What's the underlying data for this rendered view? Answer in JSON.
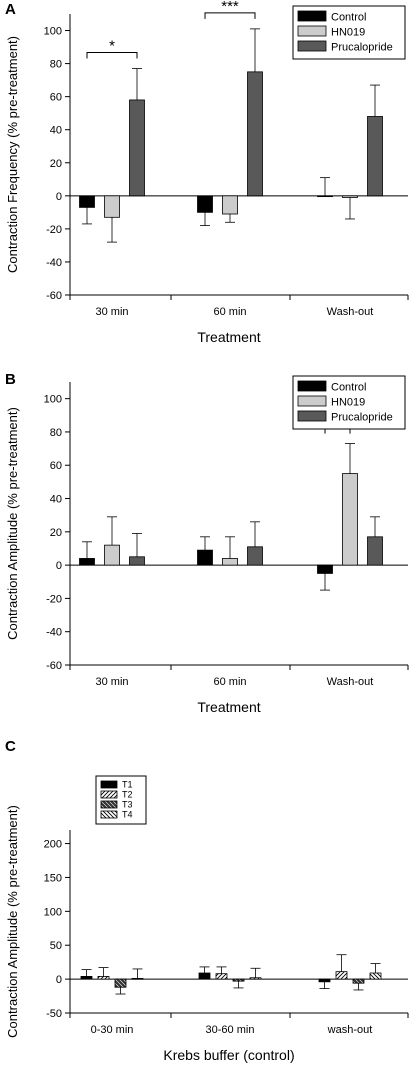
{
  "chart_data": [
    {
      "panel_label": "A",
      "type": "bar",
      "categories": [
        "30 min",
        "60 min",
        "Wash-out"
      ],
      "series": [
        {
          "name": "Control",
          "values": [
            -7,
            -10,
            0
          ],
          "errors": [
            10,
            8,
            11
          ]
        },
        {
          "name": "HN019",
          "values": [
            -13,
            -11,
            -1
          ],
          "errors": [
            15,
            5,
            13
          ]
        },
        {
          "name": "Prucalopride",
          "values": [
            58,
            75,
            48
          ],
          "errors": [
            19,
            26,
            19
          ]
        }
      ],
      "xlabel": "Treatment",
      "ylabel": "Contraction Frequency (% pre-treatment)",
      "ylim": [
        -60,
        110
      ],
      "yticks": [
        -60,
        -40,
        -20,
        0,
        20,
        40,
        60,
        80,
        100
      ],
      "legend": "top-right",
      "significance": [
        {
          "category": "30 min",
          "text": "*"
        },
        {
          "category": "60 min",
          "text": "***"
        }
      ]
    },
    {
      "panel_label": "B",
      "type": "bar",
      "categories": [
        "30 min",
        "60 min",
        "Wash-out"
      ],
      "series": [
        {
          "name": "Control",
          "values": [
            4,
            9,
            -5
          ],
          "errors": [
            10,
            8,
            10
          ]
        },
        {
          "name": "HN019",
          "values": [
            12,
            4,
            55
          ],
          "errors": [
            17,
            13,
            18
          ]
        },
        {
          "name": "Prucalopride",
          "values": [
            5,
            11,
            17
          ],
          "errors": [
            14,
            15,
            12
          ]
        }
      ],
      "xlabel": "Treatment",
      "ylabel": "Contraction Amplitude (% pre-treatment)",
      "ylim": [
        -60,
        110
      ],
      "yticks": [
        -60,
        -40,
        -20,
        0,
        20,
        40,
        60,
        80,
        100
      ],
      "legend": "top-right",
      "significance": [
        {
          "category": "Wash-out",
          "text": "***"
        }
      ]
    },
    {
      "panel_label": "C",
      "type": "bar",
      "categories": [
        "0-30 min",
        "30-60 min",
        "wash-out"
      ],
      "series": [
        {
          "name": "T1",
          "values": [
            4,
            9,
            -4
          ],
          "errors": [
            10,
            9,
            10
          ]
        },
        {
          "name": "T2",
          "values": [
            4,
            8,
            11
          ],
          "errors": [
            13,
            10,
            25
          ]
        },
        {
          "name": "T3",
          "values": [
            -12,
            -3,
            -6
          ],
          "errors": [
            10,
            10,
            10
          ]
        },
        {
          "name": "T4",
          "values": [
            1,
            2,
            9
          ],
          "errors": [
            14,
            14,
            14
          ]
        }
      ],
      "xlabel": "Krebs buffer (control)",
      "ylabel": "Contraction Amplitude (% pre-treatment)",
      "ylim": [
        -50,
        220
      ],
      "yticks": [
        -50,
        0,
        50,
        100,
        150,
        200
      ],
      "legend": "top-left"
    }
  ],
  "colors": {
    "Control": "#000000",
    "HN019": "#cccccc",
    "Prucalopride": "#595959",
    "T1": "#000000",
    "T2": "#ffffff",
    "T3": "#333333",
    "T4": "#ffffff"
  }
}
